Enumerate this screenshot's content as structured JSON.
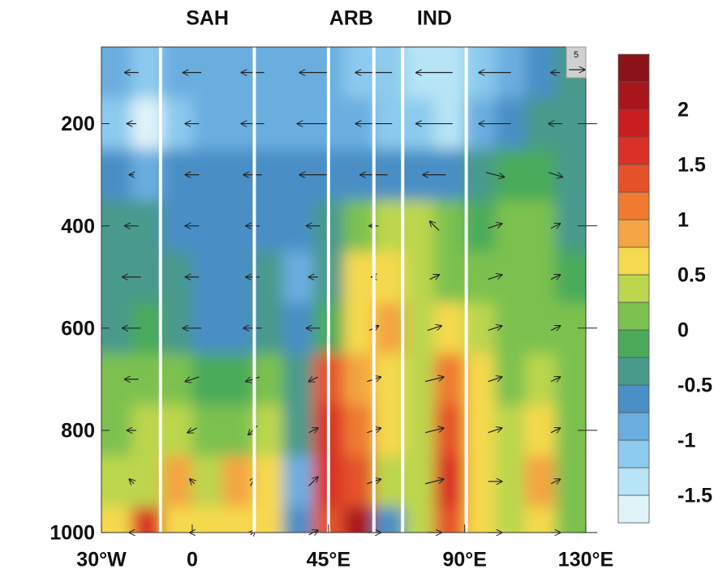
{
  "chart_data": {
    "type": "contour",
    "xlim": [
      -30,
      130
    ],
    "xticks": [
      {
        "value": -30,
        "label": "30°W"
      },
      0,
      {
        "value": 45,
        "label": "45°E"
      },
      {
        "value": 90,
        "label": "90°E"
      },
      {
        "value": 130,
        "label": "130°E"
      }
    ],
    "ylim": [
      1000,
      50
    ],
    "yticks": [
      200,
      400,
      600,
      800,
      1000
    ],
    "regions": [
      {
        "label": "SAH",
        "lon": [
          -10.5,
          20.5
        ]
      },
      {
        "label": "ARB",
        "lon": [
          45,
          60
        ]
      },
      {
        "label": "IND",
        "lon": [
          69.5,
          90.5
        ]
      }
    ],
    "field": {
      "lon": [
        -25,
        -15,
        -5,
        5,
        15,
        25,
        35,
        45,
        55,
        65,
        75,
        85,
        95,
        105,
        115,
        125
      ],
      "levels": [
        100,
        200,
        300,
        400,
        500,
        600,
        700,
        800,
        900,
        1000
      ],
      "z": [
        [
          -1,
          -1.25,
          -1,
          -1,
          -1,
          -1,
          -1,
          -1,
          -1.25,
          -1.25,
          -1.5,
          -1.5,
          -1.25,
          -1,
          -0.75,
          -0.5
        ],
        [
          -1.25,
          -1.6,
          -1.25,
          -1,
          -1,
          -0.9,
          -0.9,
          -0.9,
          -1,
          -1.1,
          -1.25,
          -1.4,
          -1,
          -0.75,
          -0.5,
          -0.4
        ],
        [
          -0.75,
          -0.9,
          -0.75,
          -0.75,
          -0.75,
          -0.75,
          -0.75,
          -0.75,
          -0.75,
          -0.75,
          -0.6,
          -0.6,
          -0.4,
          -0.1,
          -0.1,
          -0.3
        ],
        [
          -0.4,
          -0.4,
          -0.6,
          -0.6,
          -0.6,
          -0.6,
          -0.75,
          -0.4,
          0.1,
          0.4,
          0.3,
          0.1,
          -0.1,
          0.1,
          0.1,
          -0.3
        ],
        [
          -0.4,
          -0.3,
          -0.4,
          -0.6,
          -0.6,
          -0.3,
          -0.9,
          -0.3,
          0.5,
          0.6,
          0.4,
          0.1,
          0.1,
          0.2,
          0.1,
          -0.1
        ],
        [
          -0.3,
          -0.1,
          -0.3,
          -0.6,
          -0.6,
          -0.3,
          -0.6,
          -0.2,
          0.6,
          0.9,
          0.4,
          0.6,
          0.3,
          0.1,
          0.1,
          0
        ],
        [
          0,
          0.1,
          0.1,
          -0.2,
          -0.2,
          0.1,
          -0.3,
          1.3,
          0.8,
          0.6,
          0.4,
          1.0,
          0.5,
          0.2,
          0.3,
          0.1
        ],
        [
          0.1,
          0.4,
          0.3,
          0.1,
          0.2,
          0.4,
          -0.4,
          1.5,
          1.0,
          0.5,
          0.3,
          1.4,
          0.5,
          0.3,
          0.6,
          0.1
        ],
        [
          0.3,
          0.3,
          0.8,
          0.3,
          0.9,
          0.5,
          -1.0,
          1.6,
          1.3,
          0.4,
          0.3,
          1.6,
          0.6,
          0.4,
          0.8,
          0.1
        ],
        [
          0.7,
          1.7,
          0.6,
          0.5,
          0.6,
          0.7,
          -0.6,
          1.3,
          2.2,
          -0.6,
          0.3,
          1.4,
          0.6,
          0.4,
          0.6,
          0.2
        ]
      ]
    },
    "vectors": {
      "ref": 5,
      "lon": [
        -20,
        0,
        20,
        40,
        60,
        80,
        100,
        120
      ],
      "levels": [
        100,
        200,
        300,
        400,
        500,
        600,
        700,
        800,
        900,
        1000
      ],
      "u": [
        [
          -3,
          -4,
          -5,
          -6,
          -8,
          -8,
          -7,
          -2
        ],
        [
          -2,
          -3,
          -5,
          -7,
          -8,
          -8,
          -7,
          -3
        ],
        [
          -1,
          -3,
          -4,
          -6,
          -6,
          -5,
          4,
          3
        ],
        [
          -3,
          -3,
          -3,
          -3,
          -2,
          -2,
          3,
          2
        ],
        [
          -4,
          -3,
          -3,
          -2,
          -1,
          2,
          3,
          2
        ],
        [
          -4,
          -4,
          -4,
          -3,
          2,
          3,
          3,
          2
        ],
        [
          -3,
          -3,
          -3,
          -2,
          3,
          4,
          3,
          2
        ],
        [
          -2,
          -2,
          -2,
          2,
          3,
          4,
          3,
          2
        ],
        [
          -1,
          -1,
          1,
          2,
          3,
          4,
          3,
          2
        ],
        [
          -1,
          -1,
          1,
          2,
          3,
          3,
          3,
          2
        ]
      ],
      "w": [
        [
          0,
          0,
          0,
          0,
          0,
          0,
          0,
          0
        ],
        [
          0,
          0,
          0,
          0,
          0,
          0,
          0,
          0
        ],
        [
          0,
          0,
          0,
          0,
          0,
          0,
          -1,
          -1
        ],
        [
          0,
          0,
          0,
          0,
          0,
          2,
          1,
          1
        ],
        [
          0,
          0,
          0,
          0,
          0,
          1,
          1,
          1
        ],
        [
          0,
          0,
          0,
          0,
          1,
          1,
          1,
          1
        ],
        [
          0,
          -1,
          -1,
          -1,
          1,
          1,
          1,
          1
        ],
        [
          0,
          -1,
          -2,
          1,
          1,
          1,
          1,
          1
        ],
        [
          1,
          1,
          2,
          2,
          1,
          1,
          0,
          1
        ],
        [
          0,
          0,
          1,
          1,
          0,
          0,
          0,
          0
        ]
      ]
    },
    "colorbar": {
      "levels": [
        -1.75,
        -1.5,
        -1.25,
        -1,
        -0.75,
        -0.5,
        -0.25,
        0,
        0.25,
        0.5,
        0.75,
        1,
        1.25,
        1.5,
        1.75,
        2,
        2.25,
        2.5
      ],
      "colors": [
        "#e0f3f9",
        "#b7e4f6",
        "#8ccbee",
        "#6aaee0",
        "#4a8fc6",
        "#4a9a8c",
        "#4aaa5a",
        "#7bc150",
        "#bcd64e",
        "#f5d94e",
        "#f4a442",
        "#ef7a30",
        "#e5522a",
        "#d93028",
        "#c81e22",
        "#a8161c",
        "#8b1218"
      ],
      "ticks": [
        2,
        1.5,
        1,
        0.5,
        0,
        -0.5,
        -1,
        -1.5
      ]
    }
  }
}
